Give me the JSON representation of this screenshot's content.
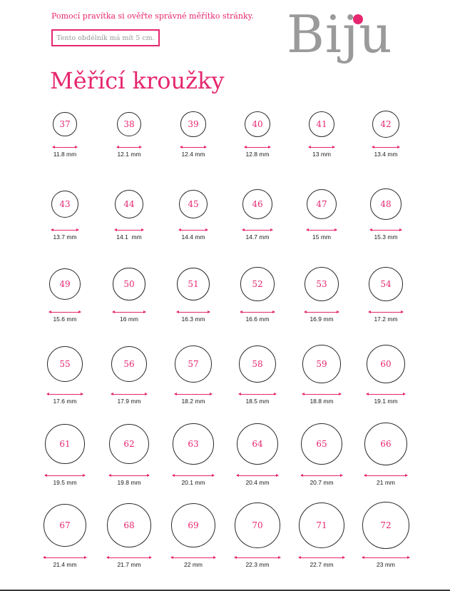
{
  "header": {
    "instruction": "Pomocí pravítka si ověřte správné měřítko stránky.",
    "test_box_label": "Tento obdélník má mít 5 cm.",
    "logo_text": "Biju",
    "title": "Měřící kroužky"
  },
  "colors": {
    "accent": "#e6276f",
    "logo_gray": "#9a9a9a",
    "ring_stroke": "#2a2a2a"
  },
  "rings": [
    {
      "size": "37",
      "diameter_label": "11.8 mm",
      "diameter_mm": 11.8
    },
    {
      "size": "38",
      "diameter_label": "12.1 mm",
      "diameter_mm": 12.1
    },
    {
      "size": "39",
      "diameter_label": "12.4 mm",
      "diameter_mm": 12.4
    },
    {
      "size": "40",
      "diameter_label": "12.8 mm",
      "diameter_mm": 12.8
    },
    {
      "size": "41",
      "diameter_label": "13 mm",
      "diameter_mm": 13
    },
    {
      "size": "42",
      "diameter_label": "13.4 mm",
      "diameter_mm": 13.4
    },
    {
      "size": "43",
      "diameter_label": "13.7 mm",
      "diameter_mm": 13.7
    },
    {
      "size": "44",
      "diameter_label": "14.1  mm",
      "diameter_mm": 14.1
    },
    {
      "size": "45",
      "diameter_label": "14.4 mm",
      "diameter_mm": 14.4
    },
    {
      "size": "46",
      "diameter_label": "14.7 mm",
      "diameter_mm": 14.7
    },
    {
      "size": "47",
      "diameter_label": "15 mm",
      "diameter_mm": 15
    },
    {
      "size": "48",
      "diameter_label": "15.3 mm",
      "diameter_mm": 15.3
    },
    {
      "size": "49",
      "diameter_label": "15.6 mm",
      "diameter_mm": 15.6
    },
    {
      "size": "50",
      "diameter_label": "16 mm",
      "diameter_mm": 16
    },
    {
      "size": "51",
      "diameter_label": "16.3 mm",
      "diameter_mm": 16.3
    },
    {
      "size": "52",
      "diameter_label": "16.6 mm",
      "diameter_mm": 16.6
    },
    {
      "size": "53",
      "diameter_label": "16.9 mm",
      "diameter_mm": 16.9
    },
    {
      "size": "54",
      "diameter_label": "17.2 mm",
      "diameter_mm": 17.2
    },
    {
      "size": "55",
      "diameter_label": "17.6 mm",
      "diameter_mm": 17.6
    },
    {
      "size": "56",
      "diameter_label": "17.9 mm",
      "diameter_mm": 17.9
    },
    {
      "size": "57",
      "diameter_label": "18.2 mm",
      "diameter_mm": 18.2
    },
    {
      "size": "58",
      "diameter_label": "18.5 mm",
      "diameter_mm": 18.5
    },
    {
      "size": "59",
      "diameter_label": "18.8 mm",
      "diameter_mm": 18.8
    },
    {
      "size": "60",
      "diameter_label": "19.1 mm",
      "diameter_mm": 19.1
    },
    {
      "size": "61",
      "diameter_label": "19.5 mm",
      "diameter_mm": 19.5
    },
    {
      "size": "62",
      "diameter_label": "19.8 mm",
      "diameter_mm": 19.8
    },
    {
      "size": "63",
      "diameter_label": "20.1 mm",
      "diameter_mm": 20.1
    },
    {
      "size": "64",
      "diameter_label": "20.4 mm",
      "diameter_mm": 20.4
    },
    {
      "size": "65",
      "diameter_label": "20.7 mm",
      "diameter_mm": 20.7
    },
    {
      "size": "66",
      "diameter_label": "21 mm",
      "diameter_mm": 21
    },
    {
      "size": "67",
      "diameter_label": "21.4 mm",
      "diameter_mm": 21.4
    },
    {
      "size": "68",
      "diameter_label": "21.7 mm",
      "diameter_mm": 21.7
    },
    {
      "size": "69",
      "diameter_label": "22 mm",
      "diameter_mm": 22
    },
    {
      "size": "70",
      "diameter_label": "22.3 mm",
      "diameter_mm": 22.3
    },
    {
      "size": "71",
      "diameter_label": "22.7 mm",
      "diameter_mm": 22.7
    },
    {
      "size": "72",
      "diameter_label": "23 mm",
      "diameter_mm": 23
    }
  ]
}
